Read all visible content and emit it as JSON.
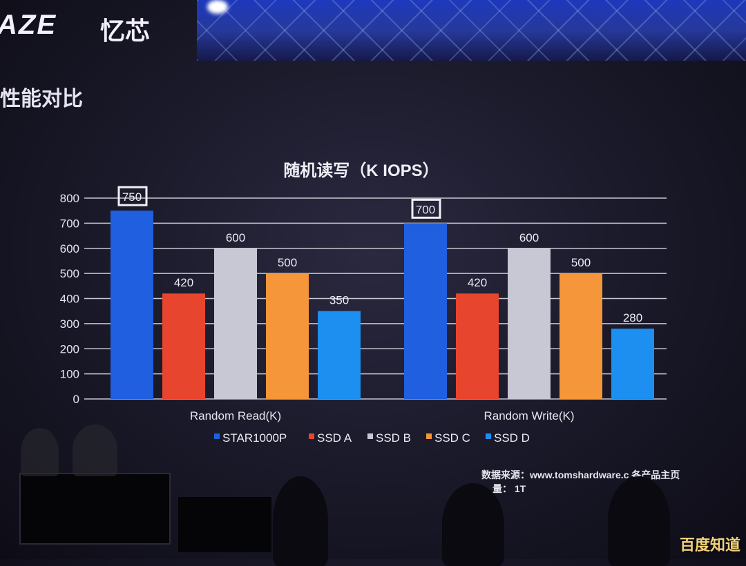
{
  "header": {
    "brand": "AZE",
    "brand_cn": "忆芯",
    "slide_title": "性能对比"
  },
  "chart_data": {
    "type": "bar",
    "title": "随机读写（K IOPS）",
    "categories": [
      "Random Read(K)",
      "Random Write(K)"
    ],
    "series": [
      {
        "name": "STAR1000P",
        "values": [
          750,
          700
        ],
        "color": "#1f5fe0"
      },
      {
        "name": "SSD A",
        "values": [
          420,
          420
        ],
        "color": "#e8452e"
      },
      {
        "name": "SSD B",
        "values": [
          600,
          600
        ],
        "color": "#c8c8d4"
      },
      {
        "name": "SSD C",
        "values": [
          500,
          500
        ],
        "color": "#f5963a"
      },
      {
        "name": "SSD D",
        "values": [
          350,
          280
        ],
        "color": "#1c8ff0"
      }
    ],
    "data_labels": [
      [
        "750",
        "700"
      ],
      [
        "420",
        "420"
      ],
      [
        "600",
        "600"
      ],
      [
        "500",
        "500"
      ],
      [
        "350",
        "280"
      ]
    ],
    "highlighted_labels": [
      "750",
      "700"
    ],
    "yticks": [
      "0",
      "100",
      "200",
      "300",
      "400",
      "500",
      "600",
      "700",
      "800"
    ],
    "ylim": [
      0,
      800
    ],
    "grid": true,
    "legend": "bottom"
  },
  "footer": {
    "source_line": "数据来源：www.tomshardware.c    各产品主页",
    "capacity_line": "量：  1T"
  },
  "watermark": "百度知道"
}
